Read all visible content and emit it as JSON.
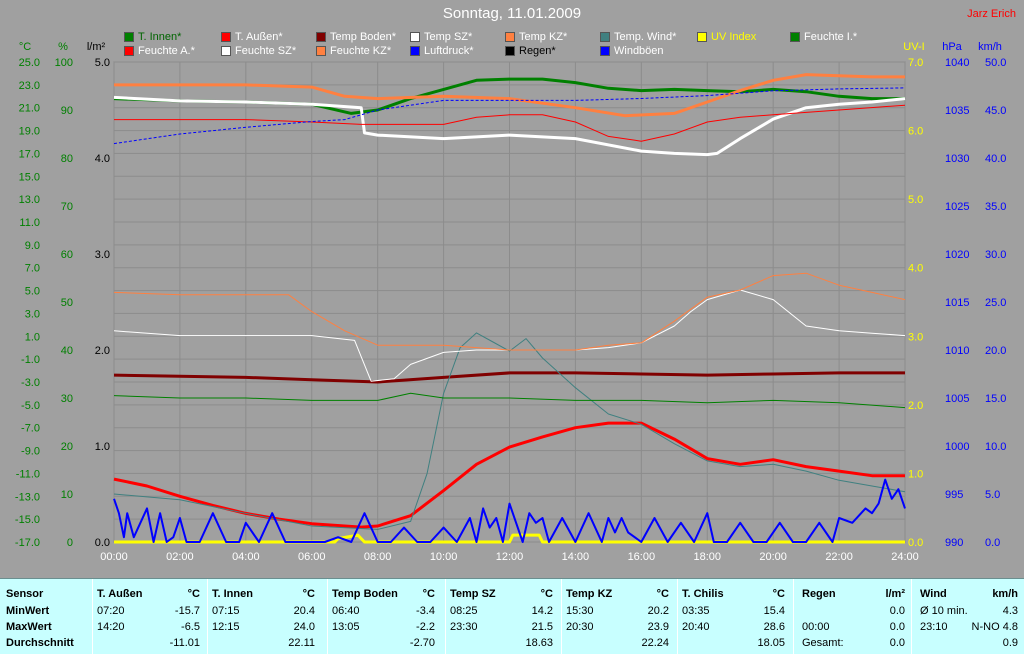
{
  "title": "Sonntag, 11.01.2009",
  "author": "Jarz Erich",
  "legend": [
    {
      "label": "T. Innen*",
      "color": "#008000",
      "text_color": "#006400"
    },
    {
      "label": "T. Außen*",
      "color": "#ff0000",
      "text_color": "#ffffff"
    },
    {
      "label": "Temp Boden*",
      "color": "#800000",
      "text_color": "#ffffff"
    },
    {
      "label": "Temp SZ*",
      "color": "#ffffff",
      "text_color": "#ffffff"
    },
    {
      "label": "Temp KZ*",
      "color": "#ff8040",
      "text_color": "#ffffff"
    },
    {
      "label": "Temp. Wind*",
      "color": "#408080",
      "text_color": "#ffffff"
    },
    {
      "label": "UV Index",
      "color": "#ffff00",
      "text_color": "#ffff00"
    },
    {
      "label": "Feuchte I.*",
      "color": "#008000",
      "text_color": "#ffffff"
    },
    {
      "label": "Feuchte A.*",
      "color": "#ff0000",
      "text_color": "#ffffff"
    },
    {
      "label": "Feuchte SZ*",
      "color": "#ffffff",
      "text_color": "#ffffff"
    },
    {
      "label": "Feuchte KZ*",
      "color": "#ff8040",
      "text_color": "#ffffff"
    },
    {
      "label": "Luftdruck*",
      "color": "#0000ff",
      "text_color": "#ffffff"
    },
    {
      "label": "Regen*",
      "color": "#000000",
      "text_color": "#000000"
    },
    {
      "label": "Windböen",
      "color": "#0000ff",
      "text_color": "#ffffff"
    }
  ],
  "chart_data": {
    "type": "line",
    "x_ticks": [
      "00:00",
      "02:00",
      "04:00",
      "06:00",
      "08:00",
      "10:00",
      "12:00",
      "14:00",
      "16:00",
      "18:00",
      "20:00",
      "22:00",
      "24:00"
    ],
    "axes": {
      "celsius": {
        "label": "°C",
        "color": "#008000",
        "min": -17,
        "max": 25,
        "ticks": [
          "25.0",
          "23.0",
          "21.0",
          "19.0",
          "17.0",
          "15.0",
          "13.0",
          "11.0",
          "9.0",
          "7.0",
          "5.0",
          "3.0",
          "1.0",
          "-1.0",
          "-3.0",
          "-5.0",
          "-7.0",
          "-9.0",
          "-11.0",
          "-13.0",
          "-15.0",
          "-17.0"
        ]
      },
      "percent": {
        "label": "%",
        "color": "#008000",
        "min": 0,
        "max": 100,
        "ticks": [
          "100",
          "90",
          "80",
          "70",
          "60",
          "50",
          "40",
          "30",
          "20",
          "10",
          "0"
        ]
      },
      "rain": {
        "label": "l/m²",
        "color": "#000000",
        "min": 0,
        "max": 5,
        "ticks": [
          "5.0",
          "4.0",
          "3.0",
          "2.0",
          "1.0",
          "0.0"
        ]
      },
      "uv": {
        "label": "UV-I",
        "color": "#ffff00",
        "min": 0,
        "max": 7,
        "ticks": [
          "7.0",
          "6.0",
          "5.0",
          "4.0",
          "3.0",
          "2.0",
          "1.0",
          "0.0"
        ]
      },
      "pressure": {
        "label": "hPa",
        "color": "#0000ff",
        "min": 990,
        "max": 1040,
        "ticks": [
          "1040",
          "1035",
          "1030",
          "1025",
          "1020",
          "1015",
          "1010",
          "1005",
          "1000",
          "995",
          "990"
        ]
      },
      "wind": {
        "label": "km/h",
        "color": "#0000ff",
        "min": 0,
        "max": 50,
        "ticks": [
          "50.0",
          "45.0",
          "40.0",
          "35.0",
          "30.0",
          "25.0",
          "20.0",
          "15.0",
          "10.0",
          "5.0",
          "0.0"
        ]
      }
    },
    "series": [
      {
        "name": "T. Innen*",
        "axis": "celsius",
        "color": "#008000",
        "width": 3,
        "x": [
          0,
          2,
          4,
          6,
          7.2,
          8,
          9,
          10,
          11,
          12,
          13,
          14,
          15,
          16,
          17,
          18,
          19,
          20,
          21,
          22,
          23,
          24
        ],
        "y": [
          21.8,
          21.6,
          21.5,
          21.3,
          20.5,
          20.8,
          21.8,
          22.6,
          23.4,
          23.5,
          23.5,
          23.2,
          22.7,
          22.5,
          22.6,
          22.5,
          22.4,
          22.6,
          22.4,
          22.0,
          21.8,
          21.8
        ]
      },
      {
        "name": "T. Außen*",
        "axis": "celsius",
        "color": "#ff0000",
        "width": 3,
        "x": [
          0,
          1,
          2,
          3,
          4,
          5,
          6,
          7,
          7.5,
          8,
          9,
          10,
          11,
          12,
          13,
          14,
          15,
          16,
          17,
          18,
          19,
          20,
          21,
          22,
          23,
          24
        ],
        "y": [
          -11.5,
          -12.1,
          -13.0,
          -13.8,
          -14.5,
          -15.0,
          -15.4,
          -15.6,
          -15.7,
          -15.6,
          -14.7,
          -12.5,
          -10.2,
          -8.7,
          -7.8,
          -7.0,
          -6.6,
          -6.6,
          -8.0,
          -9.7,
          -10.2,
          -9.8,
          -10.4,
          -10.8,
          -11.2,
          -11.2
        ]
      },
      {
        "name": "Temp Boden*",
        "axis": "celsius",
        "color": "#800000",
        "width": 3,
        "x": [
          0,
          2,
          4,
          6,
          8,
          10,
          12,
          14,
          16,
          18,
          20,
          22,
          24
        ],
        "y": [
          -2.4,
          -2.5,
          -2.6,
          -2.8,
          -3.0,
          -2.6,
          -2.2,
          -2.2,
          -2.3,
          -2.4,
          -2.3,
          -2.2,
          -2.2
        ]
      },
      {
        "name": "Temp SZ*",
        "axis": "celsius",
        "color": "#ffffff",
        "width": 3,
        "x": [
          0,
          2,
          4,
          6,
          7.5,
          7.6,
          8,
          10,
          12,
          14,
          16,
          17,
          18,
          18.3,
          19,
          20,
          21,
          22,
          23,
          24
        ],
        "y": [
          21.9,
          21.6,
          21.5,
          21.3,
          21.0,
          18.8,
          18.6,
          18.3,
          18.6,
          18.3,
          17.2,
          17.0,
          16.9,
          17.0,
          18.3,
          20.0,
          21.0,
          21.3,
          21.5,
          21.8
        ]
      },
      {
        "name": "Temp KZ*",
        "axis": "celsius",
        "color": "#ff8040",
        "width": 3,
        "x": [
          0,
          2,
          4,
          6,
          7,
          8,
          10,
          12,
          14,
          15.5,
          17,
          18,
          19,
          20,
          21,
          22,
          23,
          24
        ],
        "y": [
          23.0,
          23.0,
          23.0,
          22.8,
          22.0,
          21.8,
          22.0,
          21.8,
          21.0,
          20.3,
          20.5,
          21.5,
          22.5,
          23.4,
          23.9,
          23.8,
          23.7,
          23.7
        ]
      },
      {
        "name": "Temp. Wind*",
        "axis": "celsius",
        "color": "#408080",
        "width": 1,
        "x": [
          0,
          2,
          4,
          6,
          8,
          9,
          9.5,
          10,
          10.5,
          11,
          11.5,
          12,
          12.5,
          13,
          14,
          15,
          16,
          17,
          18,
          19,
          20,
          21,
          22,
          23,
          24
        ],
        "y": [
          -12.8,
          -13.3,
          -14.5,
          -15.6,
          -15.9,
          -15.2,
          -11,
          -4,
          0,
          1.3,
          0.5,
          -0.3,
          0.8,
          -0.9,
          -3.5,
          -5.8,
          -6.7,
          -8.4,
          -9.9,
          -10.4,
          -10.2,
          -10.8,
          -11.6,
          -12.1,
          -12.6
        ]
      },
      {
        "name": "Feuchte I.*",
        "axis": "percent",
        "color": "#008000",
        "width": 1,
        "x": [
          0,
          2,
          4,
          6,
          8,
          9,
          10,
          12,
          14,
          16,
          18,
          20,
          22,
          24
        ],
        "y": [
          30.5,
          30,
          30,
          29.5,
          29.5,
          31,
          30,
          30,
          29.5,
          29.5,
          29,
          29.5,
          29,
          28
        ]
      },
      {
        "name": "Feuchte A.*",
        "axis": "percent",
        "color": "#ff0000",
        "width": 1,
        "x": [
          0,
          2,
          4,
          6,
          7.5,
          8,
          10,
          11,
          12,
          13,
          14,
          15,
          16,
          17,
          18,
          19,
          20,
          22,
          24
        ],
        "y": [
          88,
          88,
          88,
          87.5,
          87,
          87,
          87,
          88.5,
          89,
          89,
          87.5,
          84.5,
          83.5,
          85,
          87.5,
          88.5,
          89,
          90,
          91
        ]
      },
      {
        "name": "Feuchte SZ*",
        "axis": "percent",
        "color": "#ffffff",
        "width": 1,
        "x": [
          0,
          2,
          4,
          6,
          7.3,
          7.8,
          8.5,
          9,
          10,
          11,
          12,
          13,
          14,
          15,
          16,
          17,
          17.5,
          18,
          19,
          20,
          21,
          22,
          23,
          24
        ],
        "y": [
          44,
          43,
          43,
          43,
          42,
          33.5,
          34,
          37,
          39.5,
          40,
          40,
          40,
          40,
          40.5,
          41.5,
          45,
          48,
          50.5,
          52.5,
          50.5,
          45,
          44,
          43.5,
          43
        ]
      },
      {
        "name": "Feuchte KZ*",
        "axis": "percent",
        "color": "#ff8040",
        "width": 1,
        "x": [
          0,
          2,
          4,
          5.3,
          6,
          7,
          8,
          10,
          12,
          14,
          15,
          16,
          17,
          18,
          19,
          20,
          21,
          22,
          23,
          24
        ],
        "y": [
          52,
          51.5,
          51.5,
          51.5,
          48,
          44,
          41,
          41,
          40,
          40,
          41,
          41.5,
          46,
          51,
          52.5,
          55.5,
          56,
          53.5,
          52,
          50.5
        ]
      },
      {
        "name": "Luftdruck*",
        "axis": "pressure",
        "color": "#0000ff",
        "width": 1,
        "dash": "3,2",
        "x": [
          0,
          2,
          4,
          6,
          7,
          8,
          9,
          10,
          12,
          14,
          16,
          18,
          20,
          22,
          24
        ],
        "y": [
          1031.5,
          1032.5,
          1033.2,
          1033.8,
          1034.0,
          1035.0,
          1035.5,
          1036.0,
          1036.0,
          1036.0,
          1036.2,
          1036.5,
          1037.0,
          1037.2,
          1037.3
        ]
      },
      {
        "name": "UV Index",
        "axis": "uv",
        "color": "#ffff00",
        "width": 3,
        "x": [
          0,
          6.7,
          6.8,
          7.4,
          7.5,
          7.6,
          12,
          12.1,
          12.9,
          13,
          24
        ],
        "y": [
          0,
          0,
          0.05,
          0.1,
          0.05,
          0,
          0,
          0.1,
          0.1,
          0,
          0
        ]
      },
      {
        "name": "Windböen",
        "axis": "wind",
        "color": "#0000ff",
        "width": 2,
        "x": [
          0,
          0.15,
          0.3,
          0.4,
          0.6,
          0.8,
          1,
          1.2,
          1.4,
          1.6,
          1.8,
          2,
          2.2,
          2.6,
          3,
          3.4,
          3.8,
          4,
          4.4,
          4.8,
          5.2,
          5.6,
          6,
          6.4,
          6.8,
          7.2,
          7.6,
          8,
          8.4,
          8.8,
          9.2,
          9.6,
          10,
          10.4,
          10.8,
          11,
          11.2,
          11.4,
          11.6,
          11.8,
          12,
          12.2,
          12.4,
          12.6,
          12.8,
          13,
          13.2,
          13.6,
          14,
          14.4,
          14.8,
          15,
          15.2,
          15.4,
          15.6,
          16,
          16.4,
          16.8,
          17.2,
          17.6,
          18,
          18.2,
          18.6,
          19,
          19.4,
          19.8,
          20.2,
          20.6,
          21,
          21.4,
          21.8,
          22,
          22.4,
          22.8,
          23,
          23.2,
          23.4,
          23.6,
          23.8,
          24
        ],
        "y": [
          4.5,
          3,
          0.5,
          3,
          0.5,
          2,
          3.5,
          0,
          3,
          0,
          0.5,
          2.5,
          0,
          0,
          3,
          0,
          0,
          2,
          0,
          3,
          0,
          0,
          0,
          0,
          0.5,
          0,
          3,
          0,
          0,
          1.5,
          0,
          0,
          1.5,
          0,
          2.5,
          0,
          3.5,
          1.5,
          2.5,
          0,
          4,
          2,
          0,
          3,
          2,
          2.5,
          0,
          2.5,
          0,
          3,
          0,
          2.5,
          1,
          2.5,
          1,
          0,
          2.5,
          0,
          2,
          0,
          3,
          0,
          0,
          2,
          0,
          0,
          2,
          0,
          0,
          2,
          0,
          2.5,
          2,
          3.5,
          3,
          4,
          6.5,
          4.5,
          5.5,
          3.5
        ]
      }
    ]
  },
  "stats": {
    "row_labels": {
      "header": "Sensor",
      "min": "MinWert",
      "max": "MaxWert",
      "avg": "Durchschnitt"
    },
    "columns": [
      {
        "name": "T. Außen",
        "unit": "°C",
        "min_time": "07:20",
        "min_val": "-15.7",
        "max_time": "14:20",
        "max_val": "-6.5",
        "avg": "-11.01"
      },
      {
        "name": "T. Innen",
        "unit": "°C",
        "min_time": "07:15",
        "min_val": "20.4",
        "max_time": "12:15",
        "max_val": "24.0",
        "avg": "22.11"
      },
      {
        "name": "Temp Boden",
        "unit": "°C",
        "min_time": "06:40",
        "min_val": "-3.4",
        "max_time": "13:05",
        "max_val": "-2.2",
        "avg": "-2.70"
      },
      {
        "name": "Temp SZ",
        "unit": "°C",
        "min_time": "08:25",
        "min_val": "14.2",
        "max_time": "23:30",
        "max_val": "21.5",
        "avg": "18.63"
      },
      {
        "name": "Temp KZ",
        "unit": "°C",
        "min_time": "15:30",
        "min_val": "20.2",
        "max_time": "20:30",
        "max_val": "23.9",
        "avg": "22.24"
      },
      {
        "name": "T. Chilis",
        "unit": "°C",
        "min_time": "03:35",
        "min_val": "15.4",
        "max_time": "20:40",
        "max_val": "28.6",
        "avg": "18.05"
      }
    ],
    "rain": {
      "name": "Regen",
      "unit": "l/m²",
      "row1_label": "",
      "row1_val": "0.0",
      "row2_label": "00:00",
      "row2_val": "0.0",
      "row3_label": "Gesamt:",
      "row3_val": "0.0"
    },
    "wind": {
      "name": "Wind",
      "unit": "km/h",
      "row1_label": "Ø 10 min.",
      "row1_val": "4.3",
      "row2_label": "23:10",
      "row2_val": "N-NO 4.8",
      "row3_val": "0.9"
    }
  }
}
